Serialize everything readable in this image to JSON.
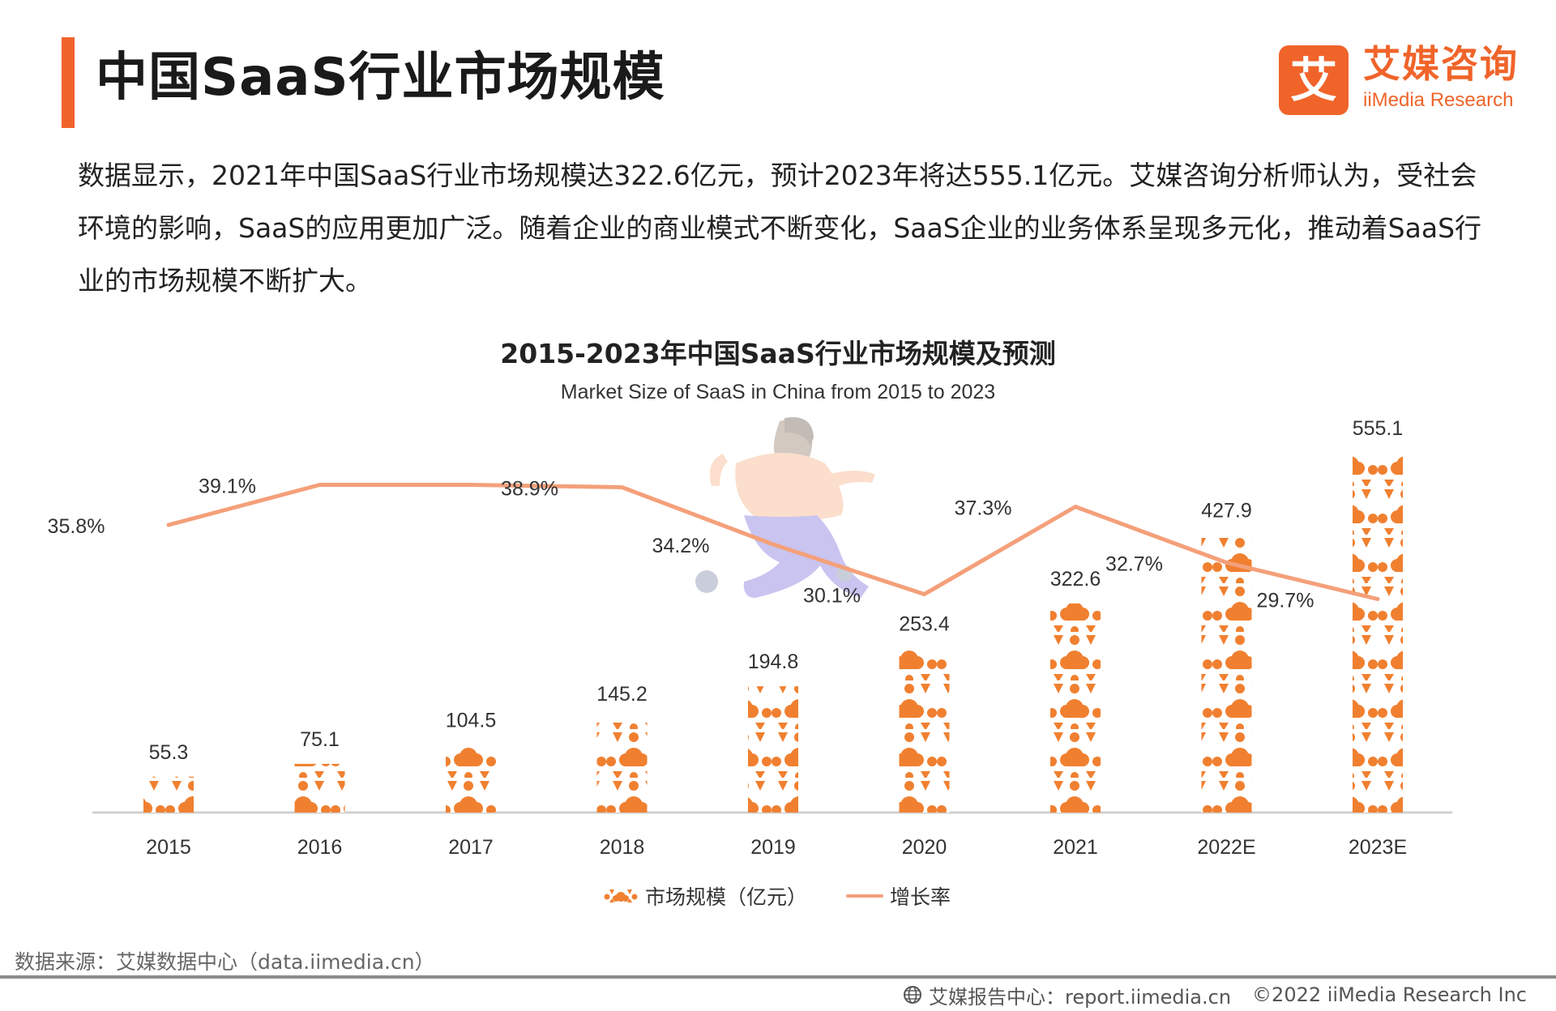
{
  "header": {
    "title": "中国SaaS行业市场规模",
    "logo_cn": "艾媒咨询",
    "logo_en": "iiMedia Research",
    "logo_mark": "艾"
  },
  "description": "数据显示，2021年中国SaaS行业市场规模达322.6亿元，预计2023年将达555.1亿元。艾媒咨询分析师认为，受社会环境的影响，SaaS的应用更加广泛。随着企业的商业模式不断变化，SaaS企业的业务体系呈现多元化，推动着SaaS行业的市场规模不断扩大。",
  "chart_data": {
    "type": "bar",
    "title": "2015-2023年中国SaaS行业市场规模及预测",
    "subtitle": "Market Size of SaaS in China from 2015 to 2023",
    "categories": [
      "2015",
      "2016",
      "2017",
      "2018",
      "2019",
      "2020",
      "2021",
      "2022E",
      "2023E"
    ],
    "series": [
      {
        "name": "市场规模（亿元）",
        "kind": "bar",
        "values": [
          55.3,
          75.1,
          104.5,
          145.2,
          194.8,
          253.4,
          322.6,
          427.9,
          555.1
        ],
        "labels": [
          "55.3",
          "75.1",
          "104.5",
          "145.2",
          "194.8",
          "253.4",
          "322.6",
          "427.9",
          "555.1"
        ],
        "color": "#f08030"
      },
      {
        "name": "增长率",
        "kind": "line",
        "values": [
          35.8,
          39.1,
          39.1,
          38.9,
          34.2,
          30.1,
          37.3,
          32.7,
          29.7
        ],
        "labels": [
          "35.8%",
          "39.1%",
          "",
          "38.9%",
          "34.2%",
          "30.1%",
          "37.3%",
          "32.7%",
          "29.7%"
        ],
        "color": "#f4a07a"
      }
    ],
    "legend": "bottom-center",
    "grid": false
  },
  "source": "数据来源：艾媒数据中心（data.iimedia.cn）",
  "footer": {
    "report": "艾媒报告中心：report.iimedia.cn",
    "copyright": "©2022 iiMedia Research Inc"
  },
  "icons": {
    "bar_pattern": "cloud-network-icon",
    "footer": "globe-icon",
    "illustration": "running-person-illustration"
  }
}
